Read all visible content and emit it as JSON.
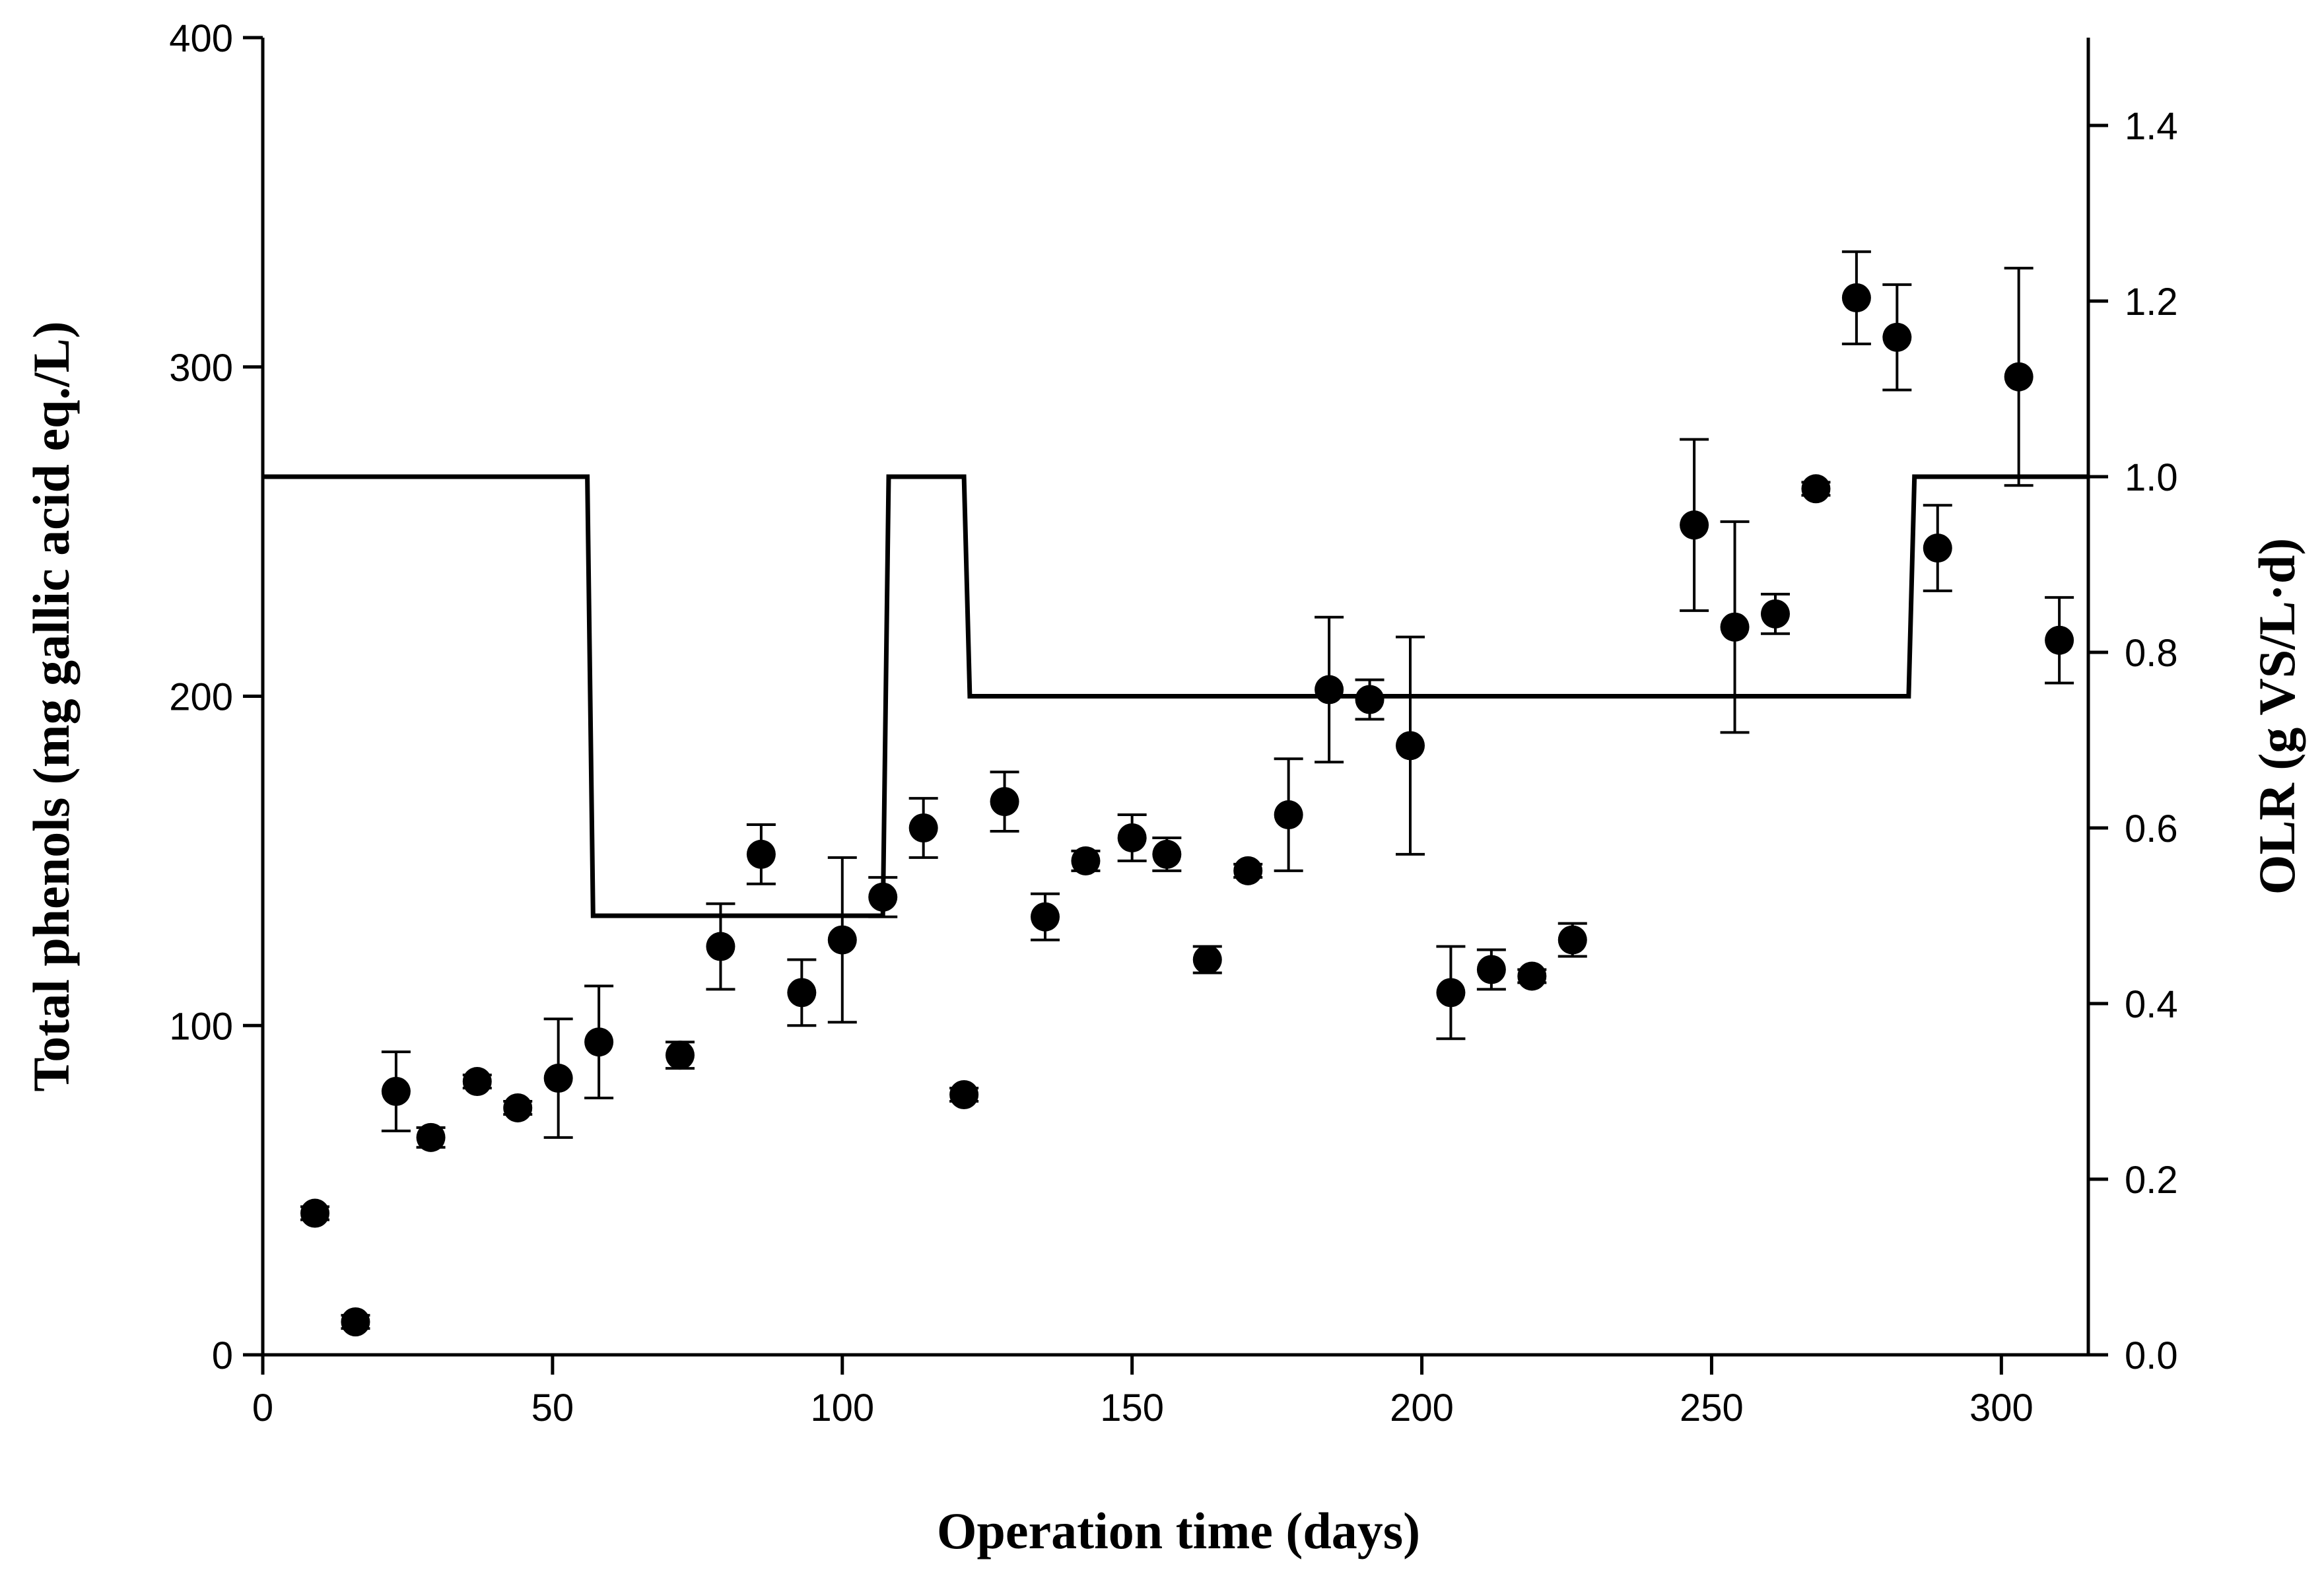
{
  "chart_data": {
    "type": "scatter",
    "title": "",
    "xlabel": "Operation time (days)",
    "ylabel": "Total phenols (mg gallic acid eq./L)",
    "y2label": "OLR (g VS/L·d)",
    "xlim": [
      0,
      315
    ],
    "ylim": [
      0,
      400
    ],
    "y2lim": [
      0,
      1.5
    ],
    "grid": false,
    "x_ticks": [
      0,
      50,
      100,
      150,
      200,
      250,
      300
    ],
    "y_ticks": [
      0,
      100,
      200,
      300,
      400
    ],
    "y2_ticks": [
      0.0,
      0.2,
      0.4,
      0.6,
      0.8,
      1.0,
      1.2,
      1.4
    ],
    "x_tick_labels": [
      "0",
      "50",
      "100",
      "150",
      "200",
      "250",
      "300"
    ],
    "y_tick_labels": [
      "0",
      "100",
      "200",
      "300",
      "400"
    ],
    "y2_tick_labels": [
      "0.0",
      "0.2",
      "0.4",
      "0.6",
      "0.8",
      "1.0",
      "1.2",
      "1.4"
    ],
    "series": [
      {
        "name": "Total phenols",
        "axis": "left",
        "kind": "scatter-errorbar",
        "points": [
          {
            "x": 9,
            "y": 43,
            "err": 2
          },
          {
            "x": 16,
            "y": 10,
            "err": 2
          },
          {
            "x": 23,
            "y": 80,
            "err": 12
          },
          {
            "x": 29,
            "y": 66,
            "err": 3
          },
          {
            "x": 37,
            "y": 83,
            "err": 2
          },
          {
            "x": 44,
            "y": 75,
            "err": 2
          },
          {
            "x": 51,
            "y": 84,
            "err": 18
          },
          {
            "x": 58,
            "y": 95,
            "err": 17
          },
          {
            "x": 72,
            "y": 91,
            "err": 4
          },
          {
            "x": 79,
            "y": 124,
            "err": 13
          },
          {
            "x": 86,
            "y": 152,
            "err": 9
          },
          {
            "x": 93,
            "y": 110,
            "err": 10
          },
          {
            "x": 100,
            "y": 126,
            "err": 25
          },
          {
            "x": 107,
            "y": 139,
            "err": 6
          },
          {
            "x": 114,
            "y": 160,
            "err": 9
          },
          {
            "x": 121,
            "y": 79,
            "err": 2
          },
          {
            "x": 128,
            "y": 168,
            "err": 9
          },
          {
            "x": 135,
            "y": 133,
            "err": 7
          },
          {
            "x": 142,
            "y": 150,
            "err": 3
          },
          {
            "x": 150,
            "y": 157,
            "err": 7
          },
          {
            "x": 156,
            "y": 152,
            "err": 5
          },
          {
            "x": 163,
            "y": 120,
            "err": 4
          },
          {
            "x": 170,
            "y": 147,
            "err": 2
          },
          {
            "x": 177,
            "y": 164,
            "err": 17
          },
          {
            "x": 184,
            "y": 202,
            "err": 22
          },
          {
            "x": 191,
            "y": 199,
            "err": 6
          },
          {
            "x": 198,
            "y": 185,
            "err": 33
          },
          {
            "x": 205,
            "y": 110,
            "err": 14
          },
          {
            "x": 212,
            "y": 117,
            "err": 6
          },
          {
            "x": 219,
            "y": 115,
            "err": 2
          },
          {
            "x": 226,
            "y": 126,
            "err": 5
          },
          {
            "x": 247,
            "y": 252,
            "err": 26
          },
          {
            "x": 254,
            "y": 221,
            "err": 32
          },
          {
            "x": 261,
            "y": 225,
            "err": 6
          },
          {
            "x": 268,
            "y": 263,
            "err": 2
          },
          {
            "x": 275,
            "y": 321,
            "err": 14
          },
          {
            "x": 282,
            "y": 309,
            "err": 16
          },
          {
            "x": 289,
            "y": 245,
            "err": 13
          },
          {
            "x": 303,
            "y": 297,
            "err": 33
          },
          {
            "x": 310,
            "y": 217,
            "err": 13
          }
        ]
      },
      {
        "name": "OLR",
        "axis": "right",
        "kind": "line",
        "x": [
          0,
          56,
          57,
          107,
          108,
          121,
          122,
          284,
          285,
          315
        ],
        "y": [
          1.0,
          1.0,
          0.5,
          0.5,
          1.0,
          1.0,
          0.75,
          0.75,
          1.0,
          1.0
        ]
      }
    ]
  }
}
